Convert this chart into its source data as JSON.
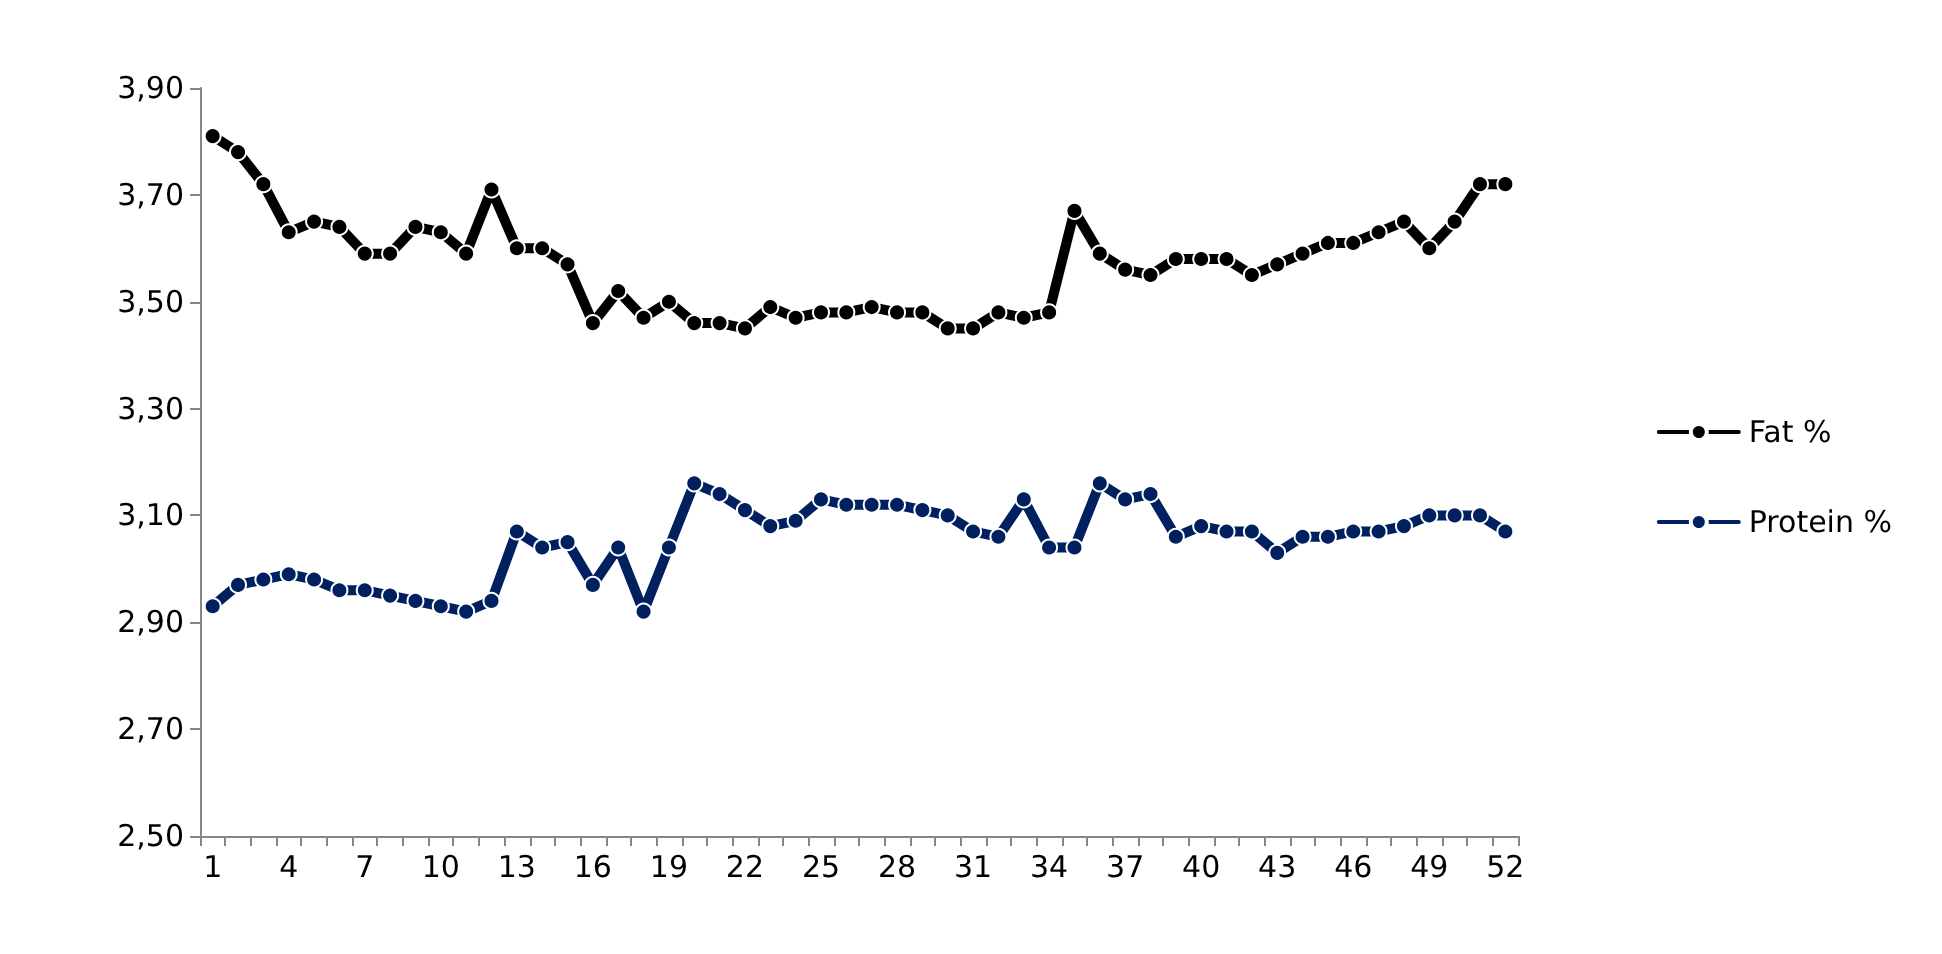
{
  "chart_data": {
    "type": "line",
    "categories": [
      "1",
      null,
      null,
      "4",
      null,
      null,
      "7",
      null,
      null,
      "10",
      null,
      null,
      "13",
      null,
      null,
      "16",
      null,
      null,
      "19",
      null,
      null,
      "22",
      null,
      null,
      "25",
      null,
      null,
      "28",
      null,
      null,
      "31",
      null,
      null,
      "34",
      null,
      null,
      "37",
      null,
      null,
      "40",
      null,
      null,
      "43",
      null,
      null,
      "46",
      null,
      null,
      "49",
      null,
      null,
      "52"
    ],
    "series": [
      {
        "name": "Fat %",
        "color": "#000000",
        "values": [
          3.81,
          3.78,
          3.72,
          3.63,
          3.65,
          3.64,
          3.59,
          3.59,
          3.64,
          3.63,
          3.59,
          3.71,
          3.6,
          3.6,
          3.57,
          3.46,
          3.52,
          3.47,
          3.5,
          3.46,
          3.46,
          3.45,
          3.49,
          3.47,
          3.48,
          3.48,
          3.49,
          3.48,
          3.48,
          3.45,
          3.45,
          3.48,
          3.47,
          3.48,
          3.67,
          3.59,
          3.56,
          3.55,
          3.58,
          3.58,
          3.58,
          3.55,
          3.57,
          3.59,
          3.61,
          3.61,
          3.63,
          3.65,
          3.6,
          3.65,
          3.72,
          3.72
        ]
      },
      {
        "name": "Protein %",
        "color": "#002060",
        "values": [
          2.93,
          2.97,
          2.98,
          2.99,
          2.98,
          2.96,
          2.96,
          2.95,
          2.94,
          2.93,
          2.92,
          2.94,
          3.07,
          3.04,
          3.05,
          2.97,
          3.04,
          2.92,
          3.04,
          3.16,
          3.14,
          3.11,
          3.08,
          3.09,
          3.13,
          3.12,
          3.12,
          3.12,
          3.11,
          3.1,
          3.07,
          3.06,
          3.13,
          3.04,
          3.04,
          3.16,
          3.13,
          3.14,
          3.06,
          3.08,
          3.07,
          3.07,
          3.03,
          3.06,
          3.06,
          3.07,
          3.07,
          3.08,
          3.1,
          3.1,
          3.1,
          3.07
        ]
      }
    ],
    "ylim": [
      2.5,
      3.9
    ],
    "yticks": [
      {
        "value": 2.5,
        "label": "2,50"
      },
      {
        "value": 2.7,
        "label": "2,70"
      },
      {
        "value": 2.9,
        "label": "2,90"
      },
      {
        "value": 3.1,
        "label": "3,10"
      },
      {
        "value": 3.3,
        "label": "3,30"
      },
      {
        "value": 3.5,
        "label": "3,50"
      },
      {
        "value": 3.7,
        "label": "3,70"
      },
      {
        "value": 3.9,
        "label": "3,90"
      }
    ],
    "grid": false,
    "legend": "right",
    "marker": "circle",
    "line_style": "solid"
  }
}
